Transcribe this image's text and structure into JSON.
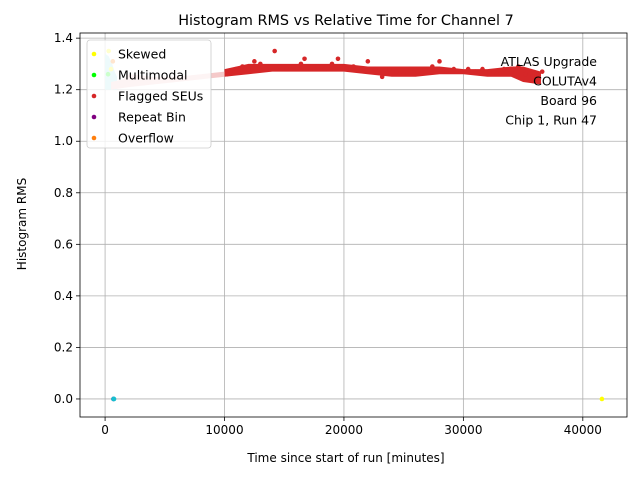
{
  "chart_data": {
    "type": "scatter",
    "title": "Histogram RMS vs Relative Time for Channel 7",
    "xlabel": "Time since start of run [minutes]",
    "ylabel": "Histogram RMS",
    "xlim": [
      -2100,
      43700
    ],
    "ylim": [
      -0.07,
      1.42
    ],
    "xticks": [
      0,
      10000,
      20000,
      30000,
      40000
    ],
    "xtick_labels": [
      "0",
      "10000",
      "20000",
      "30000",
      "40000"
    ],
    "yticks": [
      0.0,
      0.2,
      0.4,
      0.6,
      0.8,
      1.0,
      1.2,
      1.4
    ],
    "ytick_labels": [
      "0.0",
      "0.2",
      "0.4",
      "0.6",
      "0.8",
      "1.0",
      "1.2",
      "1.4"
    ],
    "grid": true,
    "legend_position": "upper-left",
    "annotation": [
      "ATLAS Upgrade",
      "COLUTAv4",
      "Board 96",
      "Chip 1, Run 47"
    ],
    "series": [
      {
        "name": "Skewed",
        "color": "#ffff00",
        "points": [
          [
            41600,
            0.0
          ],
          [
            300,
            1.35
          ],
          [
            500,
            1.28
          ]
        ]
      },
      {
        "name": "Multimodal",
        "color": "#00ff00",
        "points": [
          [
            250,
            1.26
          ]
        ]
      },
      {
        "name": "Flagged SEUs",
        "color": "#d62728",
        "points": [
          [
            10200,
            1.26
          ],
          [
            10500,
            1.27
          ],
          [
            11000,
            1.28
          ],
          [
            11500,
            1.29
          ],
          [
            12000,
            1.28
          ],
          [
            12500,
            1.31
          ],
          [
            13000,
            1.3
          ],
          [
            13500,
            1.28
          ],
          [
            14200,
            1.35
          ],
          [
            14600,
            1.29
          ],
          [
            15200,
            1.28
          ],
          [
            15800,
            1.29
          ],
          [
            16400,
            1.3
          ],
          [
            16700,
            1.32
          ],
          [
            17200,
            1.28
          ],
          [
            17800,
            1.29
          ],
          [
            18400,
            1.28
          ],
          [
            19000,
            1.3
          ],
          [
            19500,
            1.32
          ],
          [
            20200,
            1.28
          ],
          [
            20800,
            1.29
          ],
          [
            21400,
            1.28
          ],
          [
            22000,
            1.31
          ],
          [
            22600,
            1.28
          ],
          [
            23200,
            1.25
          ],
          [
            23800,
            1.28
          ],
          [
            24400,
            1.27
          ],
          [
            25000,
            1.26
          ],
          [
            25600,
            1.28
          ],
          [
            26200,
            1.27
          ],
          [
            26800,
            1.28
          ],
          [
            27400,
            1.29
          ],
          [
            28000,
            1.31
          ],
          [
            28600,
            1.27
          ],
          [
            29200,
            1.28
          ],
          [
            29800,
            1.27
          ],
          [
            30400,
            1.28
          ],
          [
            31000,
            1.27
          ],
          [
            31600,
            1.28
          ],
          [
            32200,
            1.27
          ],
          [
            32800,
            1.26
          ],
          [
            33400,
            1.28
          ],
          [
            34000,
            1.27
          ],
          [
            34600,
            1.29
          ],
          [
            35200,
            1.26
          ],
          [
            35800,
            1.25
          ],
          [
            36300,
            1.24
          ],
          [
            36600,
            1.27
          ]
        ]
      },
      {
        "name": "Repeat Bin",
        "color": "#800080",
        "points": [
          [
            700,
            0.0
          ]
        ]
      },
      {
        "name": "Overflow",
        "color": "#ff7f0e",
        "points": [
          [
            650,
            1.31
          ]
        ]
      },
      {
        "name": "",
        "color": "#17becf",
        "points": [
          [
            700,
            0.0
          ],
          [
            750,
            0.0
          ]
        ]
      }
    ],
    "bands": [
      {
        "name": "",
        "color": "#a6e6ec",
        "upper": [
          [
            0,
            1.34
          ],
          [
            300,
            1.33
          ],
          [
            600,
            1.3
          ],
          [
            800,
            1.27
          ],
          [
            1000,
            1.25
          ]
        ],
        "lower": [
          [
            0,
            1.2
          ],
          [
            1000,
            1.2
          ]
        ]
      },
      {
        "name": "",
        "color": "#f5c9c9",
        "upper": [
          [
            500,
            1.23
          ],
          [
            1500,
            1.24
          ],
          [
            2000,
            1.26
          ],
          [
            4000,
            1.25
          ],
          [
            6000,
            1.25
          ],
          [
            8000,
            1.26
          ],
          [
            10000,
            1.27
          ]
        ],
        "lower": [
          [
            500,
            1.2
          ],
          [
            2000,
            1.21
          ],
          [
            4000,
            1.22
          ],
          [
            6000,
            1.23
          ],
          [
            8000,
            1.24
          ],
          [
            10000,
            1.25
          ]
        ]
      },
      {
        "name": "",
        "color": "#d62728",
        "upper": [
          [
            10000,
            1.28
          ],
          [
            12000,
            1.3
          ],
          [
            14000,
            1.3
          ],
          [
            16000,
            1.3
          ],
          [
            18000,
            1.3
          ],
          [
            20000,
            1.3
          ],
          [
            22000,
            1.29
          ],
          [
            24000,
            1.29
          ],
          [
            26000,
            1.29
          ],
          [
            28000,
            1.29
          ],
          [
            30000,
            1.28
          ],
          [
            32000,
            1.28
          ],
          [
            34000,
            1.29
          ],
          [
            35000,
            1.29
          ],
          [
            36500,
            1.27
          ]
        ],
        "lower": [
          [
            10000,
            1.25
          ],
          [
            12000,
            1.26
          ],
          [
            14000,
            1.27
          ],
          [
            16000,
            1.27
          ],
          [
            18000,
            1.27
          ],
          [
            20000,
            1.27
          ],
          [
            22000,
            1.26
          ],
          [
            24000,
            1.25
          ],
          [
            26000,
            1.25
          ],
          [
            28000,
            1.26
          ],
          [
            30000,
            1.26
          ],
          [
            32000,
            1.25
          ],
          [
            34000,
            1.25
          ],
          [
            35000,
            1.23
          ],
          [
            36500,
            1.22
          ]
        ]
      }
    ]
  }
}
